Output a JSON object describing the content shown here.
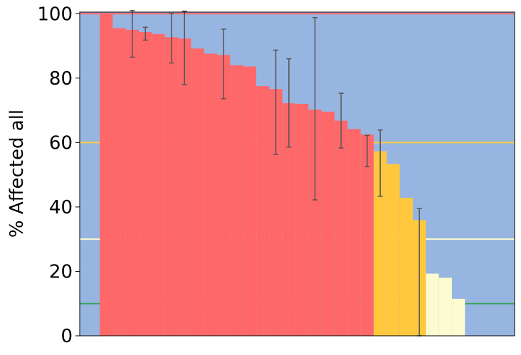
{
  "chart_data": {
    "type": "bar",
    "ylabel": "% Affected all",
    "xlabel": "",
    "ylim": [
      0,
      100.5
    ],
    "y_ticks": [
      0,
      20,
      40,
      60,
      80,
      100
    ],
    "y_tick_labels": [
      "0",
      "20",
      "40",
      "60",
      "80",
      "100"
    ],
    "bar_width_fraction": 0.0298,
    "background_color": "#97b5e1",
    "reference_lines": [
      {
        "value": 100,
        "color": "#ff6b6b"
      },
      {
        "value": 60,
        "color": "#ffcc44"
      },
      {
        "value": 30,
        "color": "#fafad2"
      },
      {
        "value": 10,
        "color": "#3fa15a"
      }
    ],
    "bars": [
      {
        "x": 0.061,
        "value": 100.0,
        "color": "#ff6868"
      },
      {
        "x": 0.091,
        "value": 95.5,
        "color": "#ff6868"
      },
      {
        "x": 0.121,
        "value": 95.0,
        "color": "#ff6868",
        "err": [
          86.5,
          101.0
        ]
      },
      {
        "x": 0.151,
        "value": 94.3,
        "color": "#ff6868",
        "err": [
          91.8,
          95.8
        ]
      },
      {
        "x": 0.181,
        "value": 93.7,
        "color": "#ff6868"
      },
      {
        "x": 0.211,
        "value": 92.7,
        "color": "#ff6868",
        "err": [
          84.7,
          100.0
        ]
      },
      {
        "x": 0.241,
        "value": 92.3,
        "color": "#ff6868",
        "err": [
          78.0,
          100.8
        ]
      },
      {
        "x": 0.271,
        "value": 89.2,
        "color": "#ff6868"
      },
      {
        "x": 0.301,
        "value": 87.6,
        "color": "#ff6868"
      },
      {
        "x": 0.331,
        "value": 87.2,
        "color": "#ff6868",
        "err": [
          73.6,
          95.2
        ]
      },
      {
        "x": 0.361,
        "value": 84.0,
        "color": "#ff6868"
      },
      {
        "x": 0.391,
        "value": 83.6,
        "color": "#ff6868"
      },
      {
        "x": 0.421,
        "value": 77.5,
        "color": "#ff6868"
      },
      {
        "x": 0.451,
        "value": 76.6,
        "color": "#ff6868",
        "err": [
          56.3,
          88.7
        ]
      },
      {
        "x": 0.481,
        "value": 72.2,
        "color": "#ff6868",
        "err": [
          58.6,
          86.0
        ]
      },
      {
        "x": 0.511,
        "value": 72.0,
        "color": "#ff6868"
      },
      {
        "x": 0.541,
        "value": 70.2,
        "color": "#ff6868",
        "err": [
          42.2,
          98.8
        ]
      },
      {
        "x": 0.571,
        "value": 69.6,
        "color": "#ff6868"
      },
      {
        "x": 0.601,
        "value": 66.8,
        "color": "#ff6868",
        "err": [
          58.3,
          75.3
        ]
      },
      {
        "x": 0.631,
        "value": 64.2,
        "color": "#ff6868"
      },
      {
        "x": 0.661,
        "value": 62.5,
        "color": "#ff6868",
        "err": [
          52.5,
          62.2
        ]
      },
      {
        "x": 0.691,
        "value": 57.3,
        "color": "#ffc83d",
        "err": [
          43.3,
          63.9
        ]
      },
      {
        "x": 0.721,
        "value": 53.3,
        "color": "#ffc83d"
      },
      {
        "x": 0.751,
        "value": 42.8,
        "color": "#ffc83d"
      },
      {
        "x": 0.781,
        "value": 35.9,
        "color": "#ffc83d",
        "err": [
          0.0,
          39.5
        ]
      },
      {
        "x": 0.811,
        "value": 19.3,
        "color": "#fcfcd0"
      },
      {
        "x": 0.841,
        "value": 18.0,
        "color": "#fcfcd0"
      },
      {
        "x": 0.871,
        "value": 11.5,
        "color": "#fcfcd0"
      }
    ]
  }
}
